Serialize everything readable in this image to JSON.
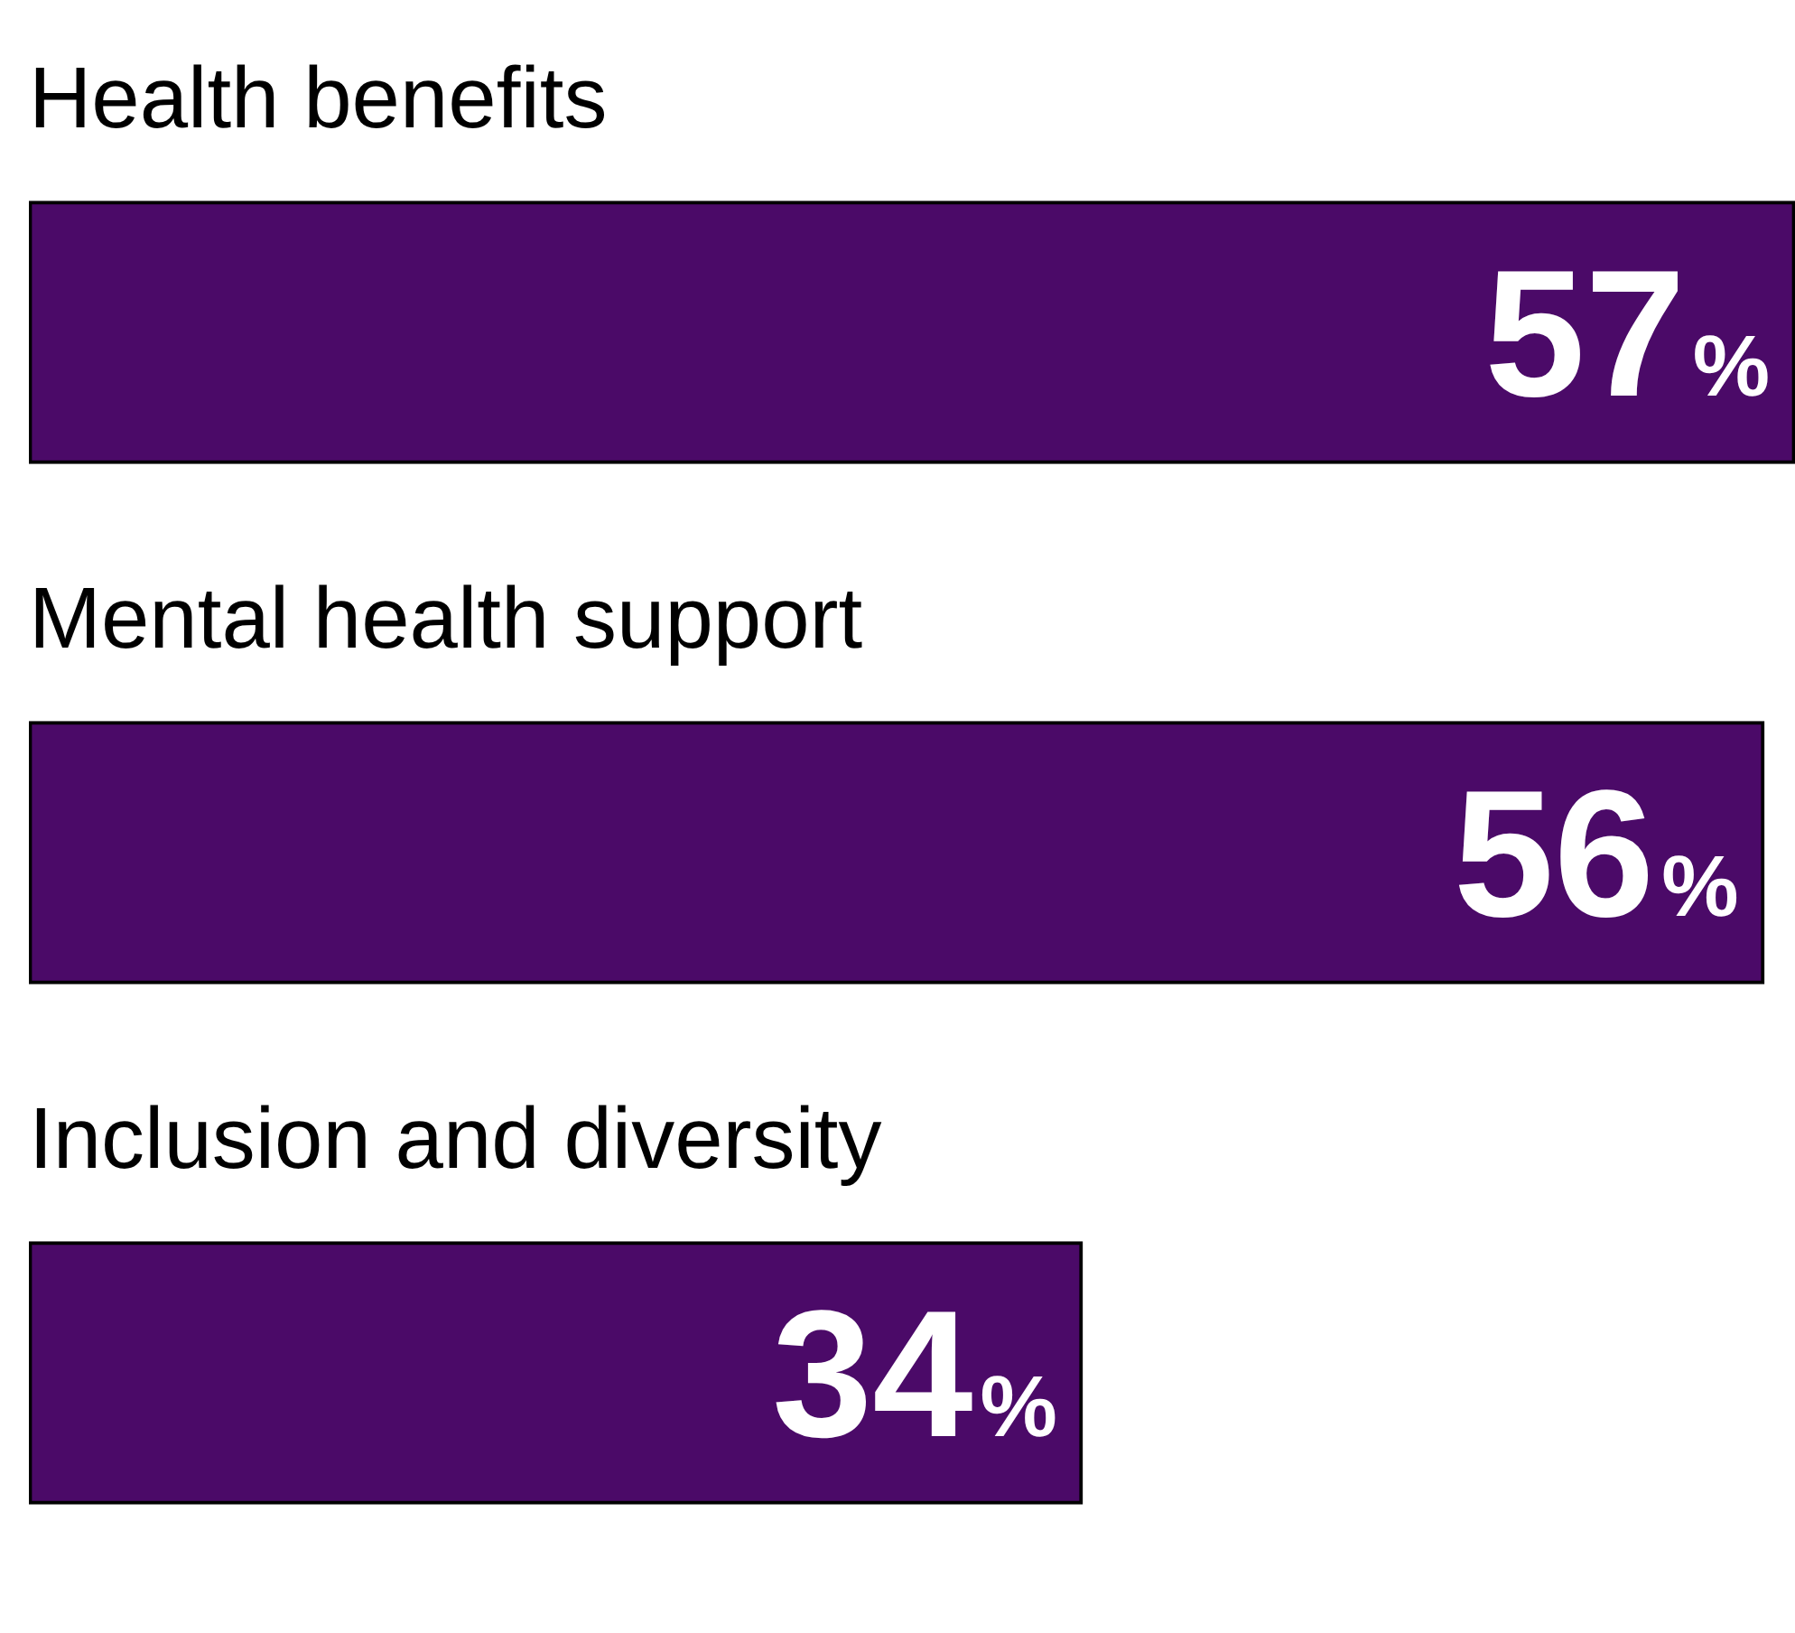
{
  "chart_data": {
    "type": "bar",
    "orientation": "horizontal",
    "categories": [
      "Health benefits",
      "Mental health support",
      "Inclusion and diversity"
    ],
    "values": [
      57,
      56,
      34
    ],
    "color": "#4b0a68",
    "value_labels": [
      "57%",
      "56%",
      "34%"
    ]
  }
}
